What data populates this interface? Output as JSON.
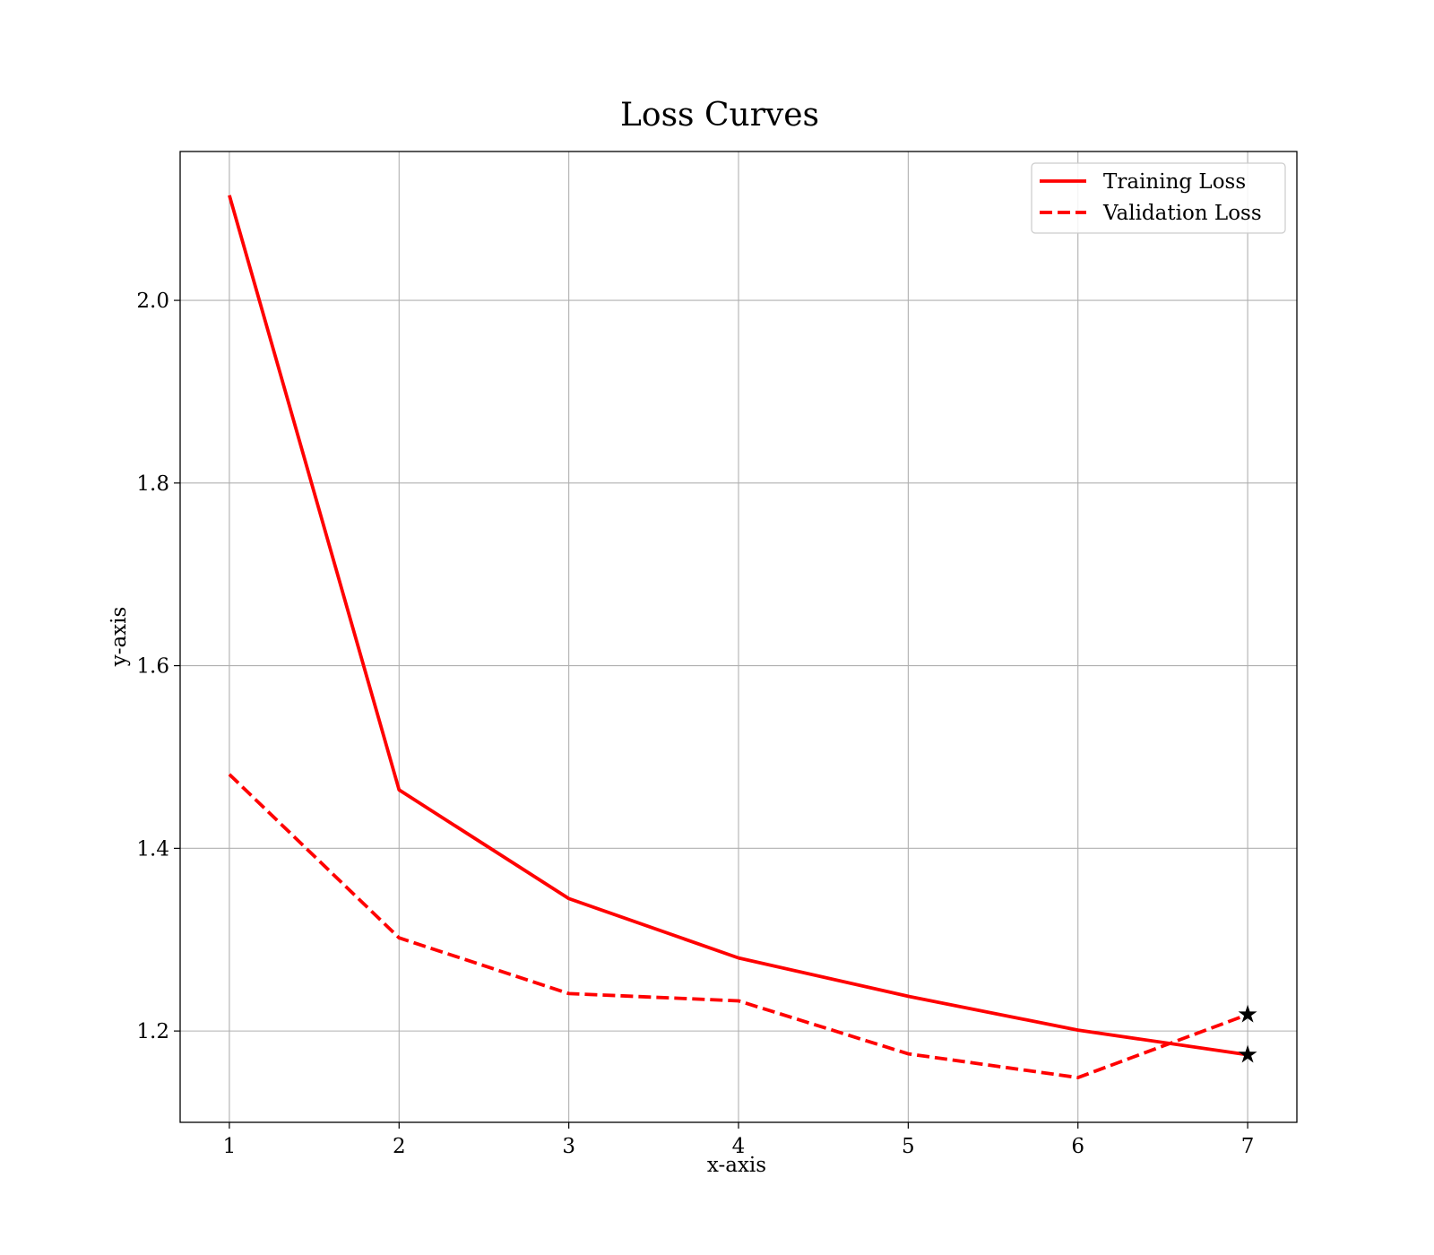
{
  "chart_data": {
    "type": "line",
    "title": "Loss Curves",
    "xlabel": "x-axis",
    "ylabel": "y-axis",
    "x": [
      1,
      2,
      3,
      4,
      5,
      6,
      7
    ],
    "xlim": [
      0.71,
      7.29
    ],
    "ylim": [
      1.1,
      2.163
    ],
    "xticks": [
      1,
      2,
      3,
      4,
      5,
      6,
      7
    ],
    "yticks": [
      1.2,
      1.4,
      1.6,
      1.8,
      2.0
    ],
    "grid": true,
    "legend_position": "top-right",
    "series": [
      {
        "name": "Training Loss",
        "style": "solid",
        "color": "#ff0000",
        "values": [
          2.115,
          1.464,
          1.345,
          1.28,
          1.238,
          1.201,
          1.174
        ]
      },
      {
        "name": "Validation Loss",
        "style": "dashed",
        "color": "#ff0000",
        "values": [
          1.481,
          1.302,
          1.241,
          1.233,
          1.175,
          1.149,
          1.218
        ]
      }
    ],
    "markers": [
      {
        "x": 7,
        "y": 1.218,
        "symbol": "star",
        "color": "#000000"
      },
      {
        "x": 7,
        "y": 1.174,
        "symbol": "star",
        "color": "#000000"
      }
    ]
  }
}
